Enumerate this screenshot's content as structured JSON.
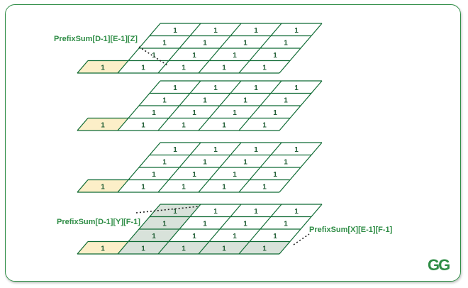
{
  "figure": {
    "cell_value": "1",
    "colors": {
      "frame": "#2f8d46",
      "grid": "#0f6b34",
      "label": "#2f8d46",
      "highlight_cell": "#fcefc8",
      "shaded_cell": "#d8e2da",
      "cell_text": "#1e5c33"
    },
    "layers": [
      {
        "id": "top",
        "shaded_rows": 0,
        "shaded_cols": 0
      },
      {
        "id": "second",
        "shaded_rows": 0,
        "shaded_cols": 0
      },
      {
        "id": "third",
        "shaded_rows": 0,
        "shaded_cols": 0
      },
      {
        "id": "bottom",
        "shaded_rows": 4,
        "shaded_cols": 1
      }
    ],
    "labels": {
      "label_top": "PrefixSum[D-1][E-1][Z]",
      "label_left": "PrefixSum[D-1][Y][F-1]",
      "label_right": "PrefixSum[X][E-1][F-1]"
    },
    "logo": {
      "icon": "geeksforgeeks-logo",
      "text": "GG"
    }
  }
}
